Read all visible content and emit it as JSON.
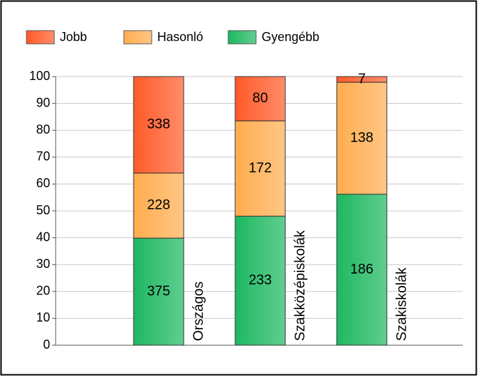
{
  "chart_data": {
    "type": "bar",
    "stack": "percent",
    "categories": [
      "Országos",
      "Szakközépiskolák",
      "Szakiskolák"
    ],
    "series": [
      {
        "name": "Gyengébb",
        "color": "#1db860",
        "values": [
          375,
          233,
          186
        ]
      },
      {
        "name": "Hasonló",
        "color": "#ffad4f",
        "values": [
          228,
          172,
          138
        ]
      },
      {
        "name": "Jobb",
        "color": "#ff5a28",
        "values": [
          338,
          80,
          7
        ]
      }
    ],
    "legend_order": [
      2,
      1,
      0
    ],
    "ylim": [
      0,
      100
    ],
    "yticks": [
      0,
      10,
      20,
      30,
      40,
      50,
      60,
      70,
      80,
      90,
      100
    ],
    "grid": true
  }
}
